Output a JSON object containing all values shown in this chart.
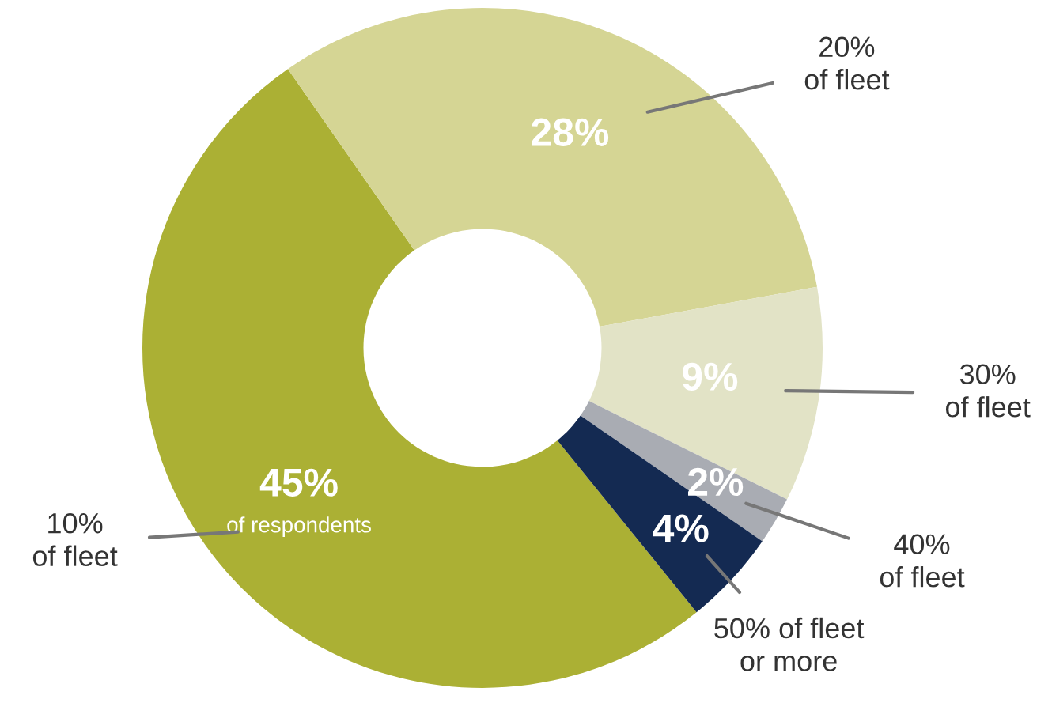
{
  "chart_data": {
    "type": "donut",
    "categories": [
      "10%\nof fleet",
      "20%\nof fleet",
      "30%\nof fleet",
      "40%\nof fleet",
      "50% of fleet\nor more"
    ],
    "values": [
      45,
      28,
      9,
      2,
      4
    ],
    "colors": [
      "#abb034",
      "#d5d594",
      "#e2e3c6",
      "#a9acb3",
      "#142a52"
    ],
    "value_labels": [
      "45%",
      "28%",
      "9%",
      "2%",
      "4%"
    ],
    "annotations": [
      "of respondents"
    ],
    "legend": false
  }
}
